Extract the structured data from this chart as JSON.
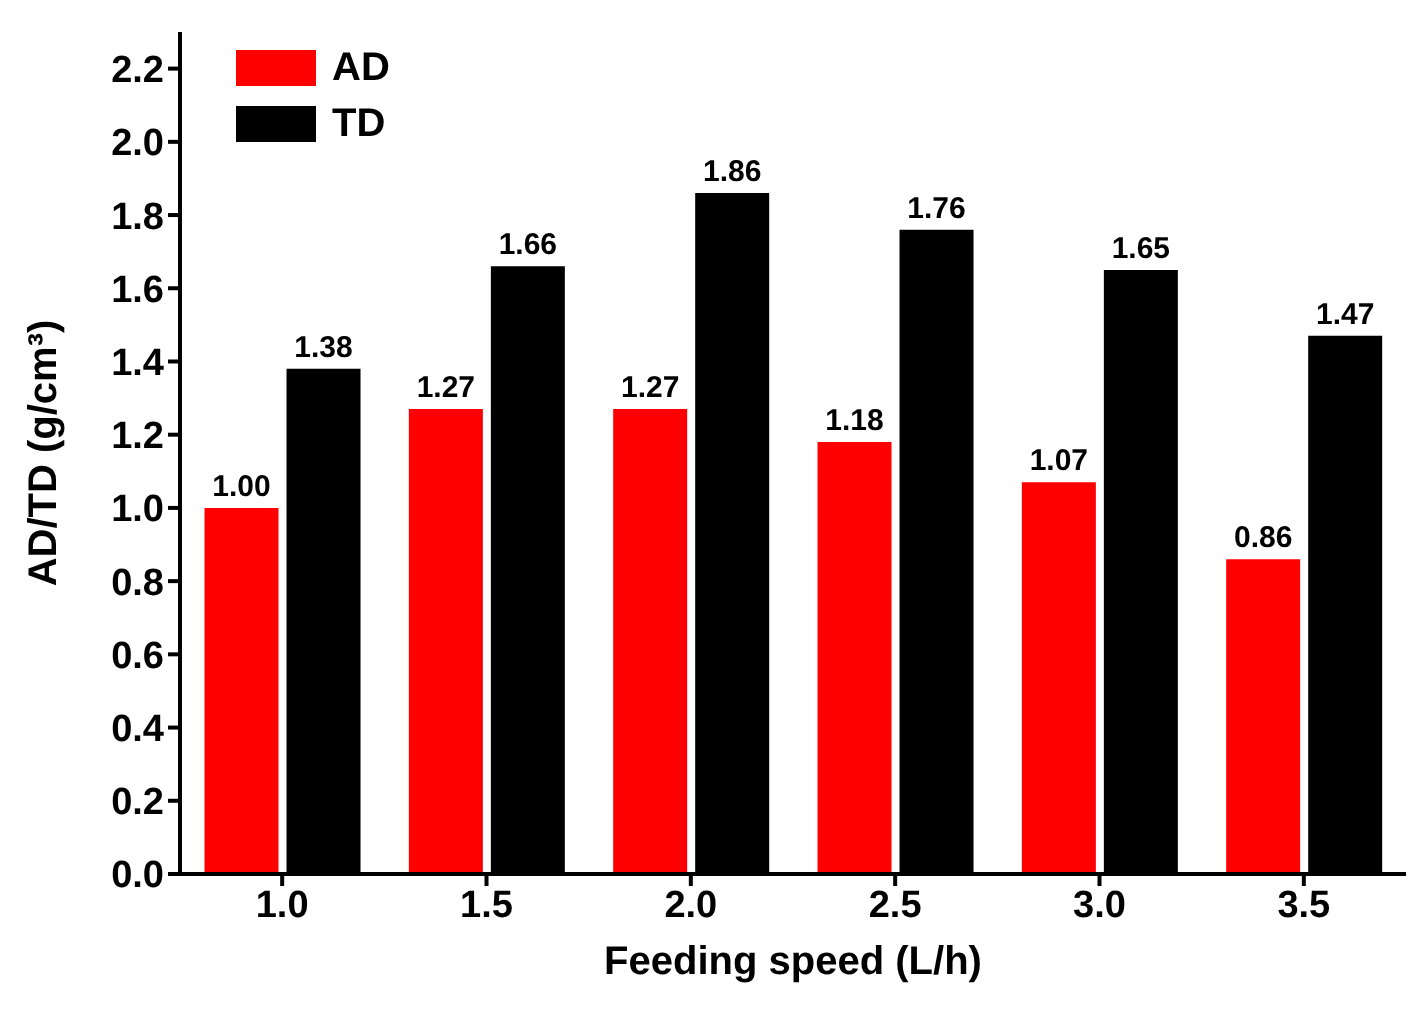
{
  "chart_data": {
    "type": "bar",
    "xlabel": "Feeding speed (L/h)",
    "ylabel": "AD/TD (g/cm³)",
    "categories": [
      "1.0",
      "1.5",
      "2.0",
      "2.5",
      "3.0",
      "3.5"
    ],
    "series": [
      {
        "name": "AD",
        "color": "#ff0000",
        "values": [
          1.0,
          1.27,
          1.27,
          1.18,
          1.07,
          0.86
        ],
        "value_labels": [
          "1.00",
          "1.27",
          "1.27",
          "1.18",
          "1.07",
          "0.86"
        ]
      },
      {
        "name": "TD",
        "color": "#000000",
        "values": [
          1.38,
          1.66,
          1.86,
          1.76,
          1.65,
          1.47
        ],
        "value_labels": [
          "1.38",
          "1.66",
          "1.86",
          "1.76",
          "1.65",
          "1.47"
        ]
      }
    ],
    "ylim": [
      0,
      2.3
    ],
    "yticks": [
      {
        "value": 0,
        "label": "0.0"
      },
      {
        "value": 0.2,
        "label": "0.2"
      },
      {
        "value": 0.4,
        "label": "0.4"
      },
      {
        "value": 0.6,
        "label": "0.6"
      },
      {
        "value": 0.8,
        "label": "0.8"
      },
      {
        "value": 1.0,
        "label": "1.0"
      },
      {
        "value": 1.2,
        "label": "1.2"
      },
      {
        "value": 1.4,
        "label": "1.4"
      },
      {
        "value": 1.6,
        "label": "1.6"
      },
      {
        "value": 1.8,
        "label": "1.8"
      },
      {
        "value": 2.0,
        "label": "2.0"
      },
      {
        "value": 2.2,
        "label": "2.2"
      }
    ],
    "legend": "top left",
    "grid": false
  }
}
